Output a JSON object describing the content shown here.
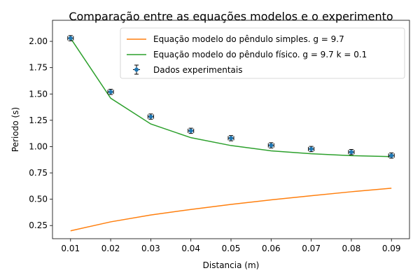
{
  "chart_data": {
    "type": "line",
    "title": "Comparação entre as equações modelos e o experimento",
    "xlabel": "Distancia (m)",
    "ylabel": "Periodo (s)",
    "xlim": [
      0.0055,
      0.0945
    ],
    "ylim": [
      0.125,
      2.2
    ],
    "grid": false,
    "legend_position": "top-right",
    "x_ticks": [
      "0.01",
      "0.02",
      "0.03",
      "0.04",
      "0.05",
      "0.06",
      "0.07",
      "0.08",
      "0.09"
    ],
    "y_ticks": [
      "0.25",
      "0.50",
      "0.75",
      "1.00",
      "1.25",
      "1.50",
      "1.75",
      "2.00"
    ],
    "x": [
      0.01,
      0.02,
      0.03,
      0.04,
      0.05,
      0.06,
      0.07,
      0.08,
      0.09
    ],
    "series": [
      {
        "name": "Equação modelo do pêndulo simples. g = 9.7",
        "kind": "line",
        "color": "#ff7f0e",
        "values": [
          0.2,
          0.285,
          0.35,
          0.403,
          0.451,
          0.494,
          0.533,
          0.571,
          0.605
        ]
      },
      {
        "name": "Equação modelo do pêndulo físico. g = 9.7 k = 0.1",
        "kind": "line",
        "color": "#2ca02c",
        "values": [
          2.03,
          1.46,
          1.215,
          1.085,
          1.01,
          0.96,
          0.932,
          0.914,
          0.905
        ]
      },
      {
        "name": "Dados experimentais",
        "kind": "errorbar",
        "color": "#1f77b4",
        "values": [
          2.03,
          1.52,
          1.285,
          1.15,
          1.08,
          1.012,
          0.977,
          0.948,
          0.915
        ],
        "yerr": [
          0.025,
          0.025,
          0.025,
          0.025,
          0.025,
          0.025,
          0.025,
          0.025,
          0.025
        ],
        "xerr": [
          0.0007,
          0.0007,
          0.0007,
          0.0007,
          0.0007,
          0.0007,
          0.0007,
          0.0007,
          0.0007
        ]
      }
    ]
  }
}
